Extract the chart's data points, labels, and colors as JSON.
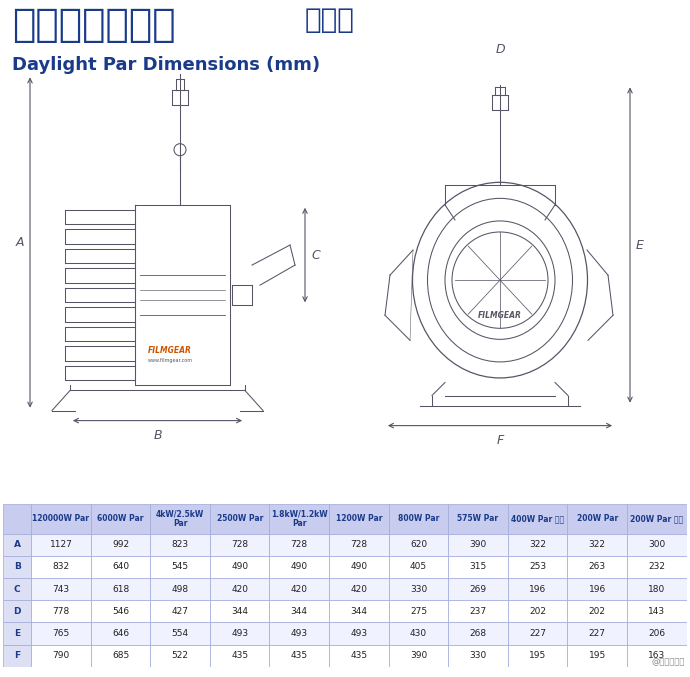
{
  "title_chinese": "高色温直射镝灯",
  "title_chinese2": "规格表",
  "title_english": "Daylight Par Dimensions (mm)",
  "title_color": "#1a3a8a",
  "bg_color": "#ffffff",
  "watermark": "@影视工业网",
  "diagram_color": "#555566",
  "arrow_color": "#555566",
  "table": {
    "header_bg": "#c8ccee",
    "header_text_color": "#1a3a8a",
    "row_label_bg": "#dde0f5",
    "border_color": "#9fa8da",
    "columns": [
      "",
      "120000W Par",
      "6000W Par",
      "4kW/2.5kW\nPar",
      "2500W Par",
      "1.8kW/1.2kW\nPar",
      "1200W Par",
      "800W Par",
      "575W Par",
      "400W Par 小型",
      "200W Par",
      "200W Par 小型"
    ],
    "rows": [
      [
        "A",
        "1127",
        "992",
        "823",
        "728",
        "728",
        "728",
        "620",
        "390",
        "322",
        "322",
        "300"
      ],
      [
        "B",
        "832",
        "640",
        "545",
        "490",
        "490",
        "490",
        "405",
        "315",
        "253",
        "263",
        "232"
      ],
      [
        "C",
        "743",
        "618",
        "498",
        "420",
        "420",
        "420",
        "330",
        "269",
        "196",
        "196",
        "180"
      ],
      [
        "D",
        "778",
        "546",
        "427",
        "344",
        "344",
        "344",
        "275",
        "237",
        "202",
        "202",
        "143"
      ],
      [
        "E",
        "765",
        "646",
        "554",
        "493",
        "493",
        "493",
        "430",
        "268",
        "227",
        "227",
        "206"
      ],
      [
        "F",
        "790",
        "685",
        "522",
        "435",
        "435",
        "435",
        "390",
        "330",
        "195",
        "195",
        "163"
      ]
    ]
  }
}
